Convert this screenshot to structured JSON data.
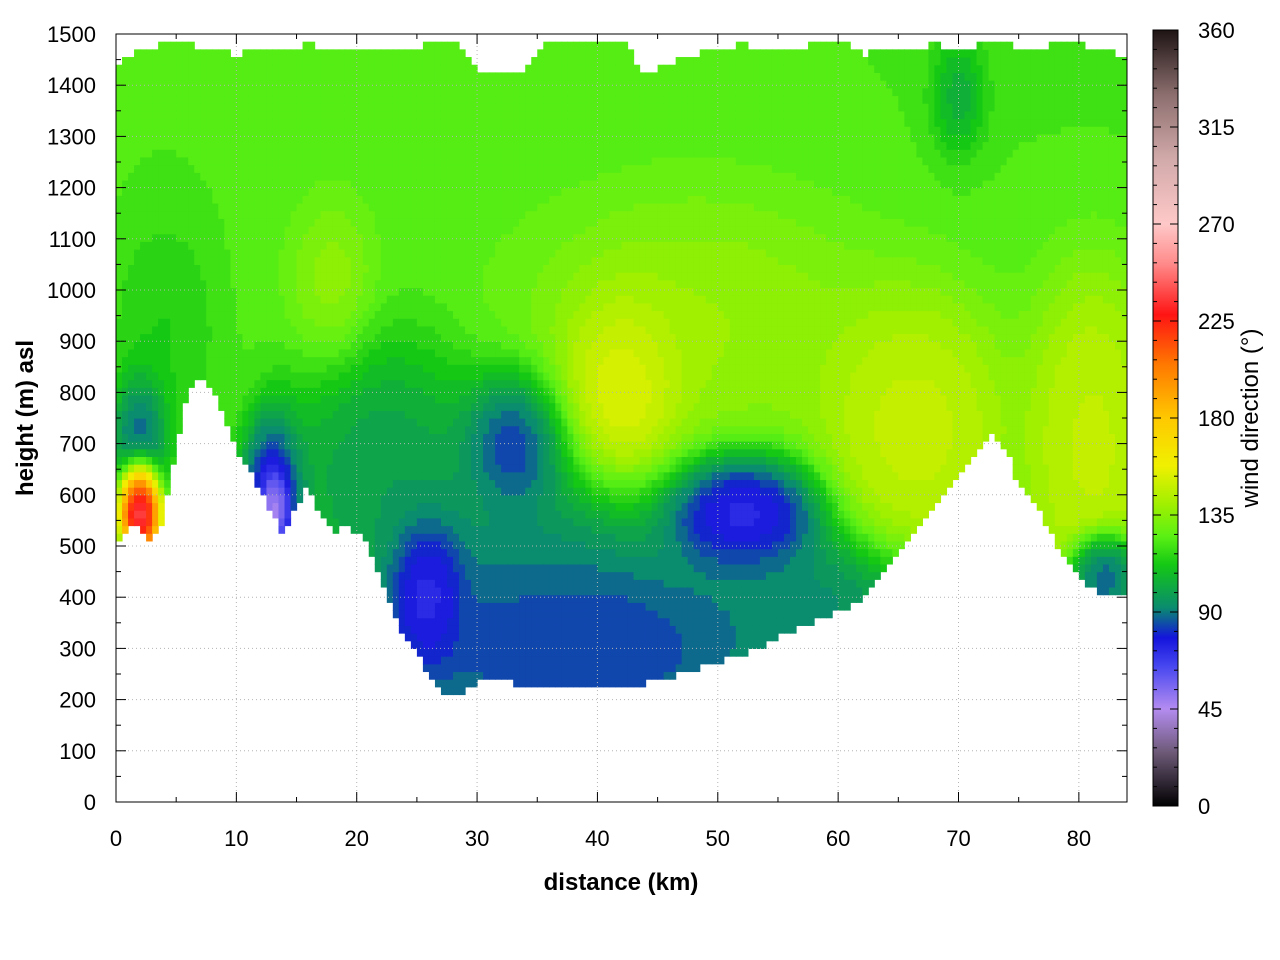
{
  "chart_data": {
    "type": "heatmap",
    "title": "",
    "xlabel": "distance (km)",
    "ylabel": "height (m) asl",
    "colorbar_label": "wind direction (°)",
    "xlim": [
      0,
      84
    ],
    "ylim": [
      0,
      1500
    ],
    "clim": [
      0,
      360
    ],
    "x_ticks": [
      0,
      10,
      20,
      30,
      40,
      50,
      60,
      70,
      80
    ],
    "y_ticks": [
      0,
      100,
      200,
      300,
      400,
      500,
      600,
      700,
      800,
      900,
      1000,
      1100,
      1200,
      1300,
      1400,
      1500
    ],
    "colorbar_ticks": [
      0,
      45,
      90,
      135,
      180,
      225,
      270,
      315,
      360
    ],
    "grid": true,
    "colormap": [
      {
        "value": 0,
        "color": "#000000"
      },
      {
        "value": 25,
        "color": "#6e5a78"
      },
      {
        "value": 45,
        "color": "#b48cf0"
      },
      {
        "value": 65,
        "color": "#4646f0"
      },
      {
        "value": 78,
        "color": "#1414dc"
      },
      {
        "value": 92,
        "color": "#0a8c6e"
      },
      {
        "value": 112,
        "color": "#14c814"
      },
      {
        "value": 125,
        "color": "#5af014"
      },
      {
        "value": 140,
        "color": "#a0f000"
      },
      {
        "value": 158,
        "color": "#f0f000"
      },
      {
        "value": 180,
        "color": "#ffc800"
      },
      {
        "value": 205,
        "color": "#ff7800"
      },
      {
        "value": 228,
        "color": "#ff1414"
      },
      {
        "value": 252,
        "color": "#ff8c8c"
      },
      {
        "value": 270,
        "color": "#ffc8c8"
      },
      {
        "value": 300,
        "color": "#d2aaaa"
      },
      {
        "value": 330,
        "color": "#8c6e6e"
      },
      {
        "value": 360,
        "color": "#1e1414"
      }
    ],
    "terrain": {
      "x": [
        0,
        1.5,
        3,
        4,
        5,
        6,
        7,
        8,
        9,
        10,
        11,
        12,
        13,
        14,
        15,
        16,
        17,
        18,
        19,
        20,
        21,
        22,
        23,
        24,
        25,
        26,
        27,
        28,
        29,
        30,
        32,
        34,
        36,
        38,
        40,
        42,
        44,
        46,
        48,
        50,
        52,
        54,
        56,
        58,
        60,
        62,
        64,
        66,
        68,
        70,
        72,
        73,
        74,
        75,
        76,
        77,
        78,
        79,
        80,
        81,
        82,
        83,
        84
      ],
      "height": [
        510,
        550,
        510,
        560,
        700,
        810,
        825,
        810,
        760,
        690,
        650,
        610,
        560,
        520,
        580,
        620,
        560,
        530,
        540,
        530,
        500,
        430,
        370,
        320,
        290,
        250,
        220,
        210,
        220,
        235,
        238,
        225,
        222,
        224,
        228,
        226,
        232,
        245,
        260,
        275,
        290,
        310,
        335,
        355,
        370,
        400,
        450,
        520,
        580,
        640,
        700,
        720,
        690,
        620,
        590,
        560,
        510,
        470,
        440,
        420,
        400,
        400,
        400
      ]
    },
    "top": {
      "x": [
        0,
        2,
        4,
        6,
        8,
        10,
        12,
        14,
        16,
        18,
        20,
        22,
        24,
        26,
        28,
        30,
        32,
        34,
        36,
        38,
        40,
        42,
        44,
        46,
        48,
        50,
        52,
        54,
        56,
        58,
        60,
        62,
        64,
        66,
        68,
        70,
        72,
        74,
        76,
        78,
        80,
        82,
        84
      ],
      "height": [
        1440,
        1470,
        1480,
        1480,
        1470,
        1460,
        1470,
        1470,
        1480,
        1470,
        1470,
        1470,
        1470,
        1480,
        1490,
        1430,
        1430,
        1430,
        1490,
        1490,
        1490,
        1490,
        1420,
        1440,
        1460,
        1470,
        1480,
        1470,
        1470,
        1480,
        1490,
        1460,
        1470,
        1470,
        1480,
        1470,
        1480,
        1480,
        1470,
        1480,
        1480,
        1470,
        1450
      ]
    },
    "regions": [
      {
        "x": 0,
        "height": 1300,
        "value": 125,
        "sx": 90,
        "sy": 700
      },
      {
        "x": 40,
        "height": 1400,
        "value": 120,
        "sx": 110,
        "sy": 300
      },
      {
        "x": 18,
        "height": 1030,
        "value": 150,
        "sx": 3,
        "sy": 150
      },
      {
        "x": 42,
        "height": 830,
        "value": 170,
        "sx": 4,
        "sy": 150
      },
      {
        "x": 48,
        "height": 1000,
        "value": 148,
        "sx": 12,
        "sy": 220
      },
      {
        "x": 66,
        "height": 780,
        "value": 155,
        "sx": 6,
        "sy": 200
      },
      {
        "x": 81,
        "height": 780,
        "value": 152,
        "sx": 4,
        "sy": 250
      },
      {
        "x": 4,
        "height": 960,
        "value": 105,
        "sx": 4,
        "sy": 200
      },
      {
        "x": 22,
        "height": 700,
        "value": 88,
        "sx": 7,
        "sy": 200
      },
      {
        "x": 34,
        "height": 430,
        "value": 85,
        "sx": 10,
        "sy": 180
      },
      {
        "x": 55,
        "height": 390,
        "value": 88,
        "sx": 8,
        "sy": 110
      },
      {
        "x": 38,
        "height": 330,
        "value": 76,
        "sx": 10,
        "sy": 110
      },
      {
        "x": 33,
        "height": 710,
        "value": 64,
        "sx": 3.5,
        "sy": 110
      },
      {
        "x": 52,
        "height": 570,
        "value": 58,
        "sx": 5,
        "sy": 90
      },
      {
        "x": 26,
        "height": 420,
        "value": 55,
        "sx": 2.5,
        "sy": 110
      },
      {
        "x": 13,
        "height": 620,
        "value": 55,
        "sx": 2,
        "sy": 120
      },
      {
        "x": 2,
        "height": 720,
        "value": 62,
        "sx": 1.8,
        "sy": 100
      },
      {
        "x": 70,
        "height": 1380,
        "value": 78,
        "sx": 2,
        "sy": 100
      },
      {
        "x": 82,
        "height": 450,
        "value": 75,
        "sx": 2,
        "sy": 60
      },
      {
        "x": 2,
        "height": 590,
        "value": 300,
        "sx": 1.2,
        "sy": 70
      },
      {
        "x": 13.2,
        "height": 580,
        "value": 12,
        "sx": 0.9,
        "sy": 55
      }
    ]
  }
}
